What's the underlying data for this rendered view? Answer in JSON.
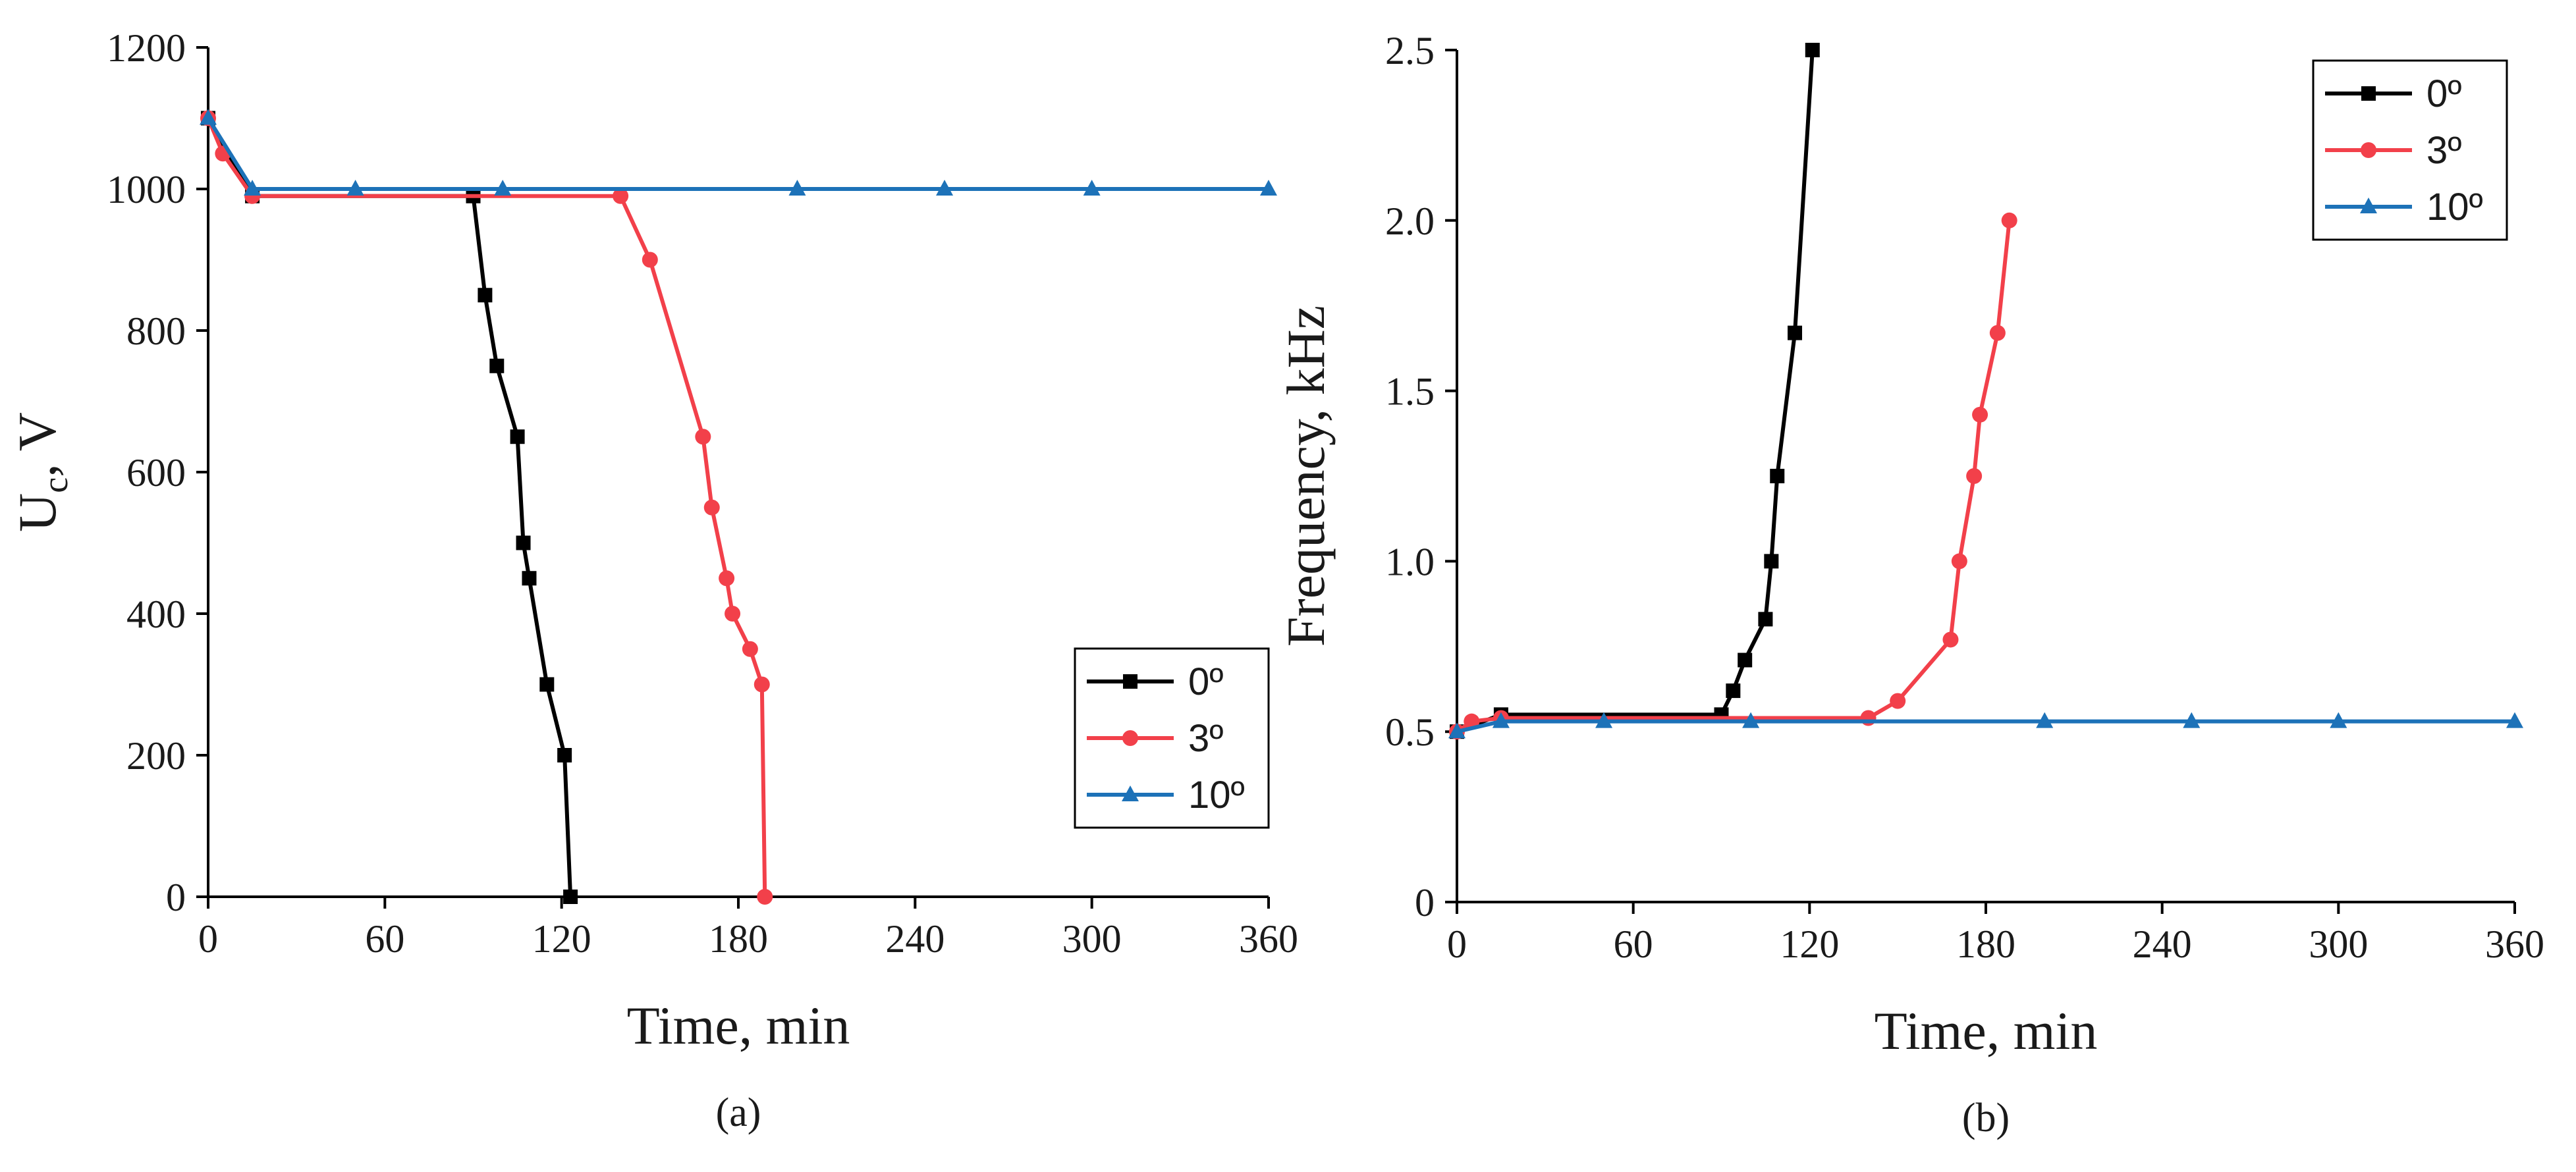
{
  "chart_data": [
    {
      "type": "line",
      "panel_label": "(a)",
      "xlabel": "Time, min",
      "ylabel_main": "U",
      "ylabel_sub": "c",
      "ylabel_rest": ", V",
      "xlim": [
        0,
        360
      ],
      "ylim": [
        0,
        1200
      ],
      "xticks": [
        0,
        60,
        120,
        180,
        240,
        300,
        360
      ],
      "yticks": [
        0,
        200,
        400,
        600,
        800,
        1000,
        1200
      ],
      "legend_position": "bottom-right",
      "series": [
        {
          "name": "0º",
          "color": "#000000",
          "marker": "square",
          "points": [
            [
              0,
              1100
            ],
            [
              15,
              990
            ],
            [
              90,
              990
            ],
            [
              94,
              850
            ],
            [
              98,
              750
            ],
            [
              105,
              650
            ],
            [
              107,
              500
            ],
            [
              109,
              450
            ],
            [
              115,
              300
            ],
            [
              121,
              200
            ],
            [
              123,
              0
            ]
          ]
        },
        {
          "name": "3º",
          "color": "#f2404a",
          "marker": "circle",
          "points": [
            [
              0,
              1100
            ],
            [
              5,
              1050
            ],
            [
              15,
              990
            ],
            [
              140,
              990
            ],
            [
              150,
              900
            ],
            [
              168,
              650
            ],
            [
              171,
              550
            ],
            [
              176,
              450
            ],
            [
              178,
              400
            ],
            [
              184,
              350
            ],
            [
              188,
              300
            ],
            [
              189,
              0
            ]
          ]
        },
        {
          "name": "10º",
          "color": "#1d72b8",
          "marker": "triangle",
          "points": [
            [
              0,
              1100
            ],
            [
              15,
              1000
            ],
            [
              50,
              1000
            ],
            [
              100,
              1000
            ],
            [
              200,
              1000
            ],
            [
              250,
              1000
            ],
            [
              300,
              1000
            ],
            [
              360,
              1000
            ]
          ]
        }
      ]
    },
    {
      "type": "line",
      "panel_label": "(b)",
      "xlabel": "Time, min",
      "ylabel": "Frequency, kHz",
      "xlim": [
        0,
        360
      ],
      "ylim": [
        0,
        2.5
      ],
      "xticks": [
        0,
        60,
        120,
        180,
        240,
        300,
        360
      ],
      "yticks": [
        0,
        0.5,
        1.0,
        1.5,
        2.0,
        2.5
      ],
      "ytick_labels": [
        "0",
        "0.5",
        "1.0",
        "1.5",
        "2.0",
        "2.5"
      ],
      "legend_position": "top-right",
      "series": [
        {
          "name": "0º",
          "color": "#000000",
          "marker": "square",
          "points": [
            [
              0,
              0.5
            ],
            [
              15,
              0.55
            ],
            [
              90,
              0.55
            ],
            [
              94,
              0.62
            ],
            [
              98,
              0.71
            ],
            [
              105,
              0.83
            ],
            [
              107,
              1.0
            ],
            [
              109,
              1.25
            ],
            [
              115,
              1.67
            ],
            [
              121,
              2.5
            ]
          ]
        },
        {
          "name": "3º",
          "color": "#f2404a",
          "marker": "circle",
          "points": [
            [
              0,
              0.5
            ],
            [
              5,
              0.53
            ],
            [
              15,
              0.54
            ],
            [
              140,
              0.54
            ],
            [
              150,
              0.59
            ],
            [
              168,
              0.77
            ],
            [
              171,
              1.0
            ],
            [
              176,
              1.25
            ],
            [
              178,
              1.43
            ],
            [
              184,
              1.67
            ],
            [
              188,
              2.0
            ]
          ]
        },
        {
          "name": "10º",
          "color": "#1d72b8",
          "marker": "triangle",
          "points": [
            [
              0,
              0.5
            ],
            [
              15,
              0.53
            ],
            [
              50,
              0.53
            ],
            [
              100,
              0.53
            ],
            [
              200,
              0.53
            ],
            [
              250,
              0.53
            ],
            [
              300,
              0.53
            ],
            [
              360,
              0.53
            ]
          ]
        }
      ]
    }
  ]
}
